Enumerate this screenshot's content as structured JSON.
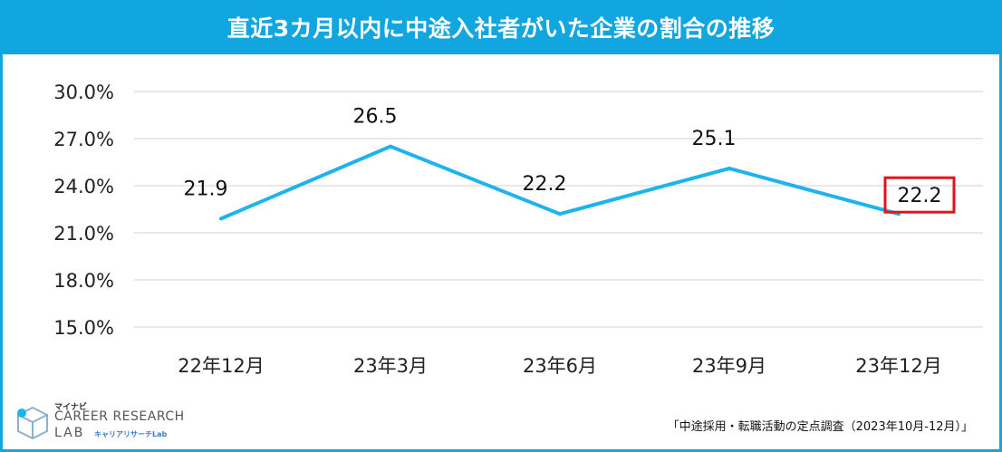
{
  "title": "直近3カ月以内に中途入社者がいた企業の割合の推移",
  "source": "「中途採用・転職活動の定点調査（2023年10月-12月）」",
  "logo": {
    "brand": "マイナビ",
    "line1": "CAREER RESEARCH",
    "line2": "LAB",
    "line3": "キャリアリサーチLab"
  },
  "colors": {
    "line": "#1db4ee",
    "title_bg": "#11a6e0",
    "highlight_box": "#e0141e",
    "grid": "#d0d0d0"
  },
  "chart_data": {
    "type": "line",
    "title": "直近3カ月以内に中途入社者がいた企業の割合の推移",
    "categories": [
      "22年12月",
      "23年3月",
      "23年6月",
      "23年9月",
      "23年12月"
    ],
    "series": [
      {
        "values": [
          21.9,
          26.5,
          22.2,
          25.1,
          22.2
        ]
      }
    ],
    "data_labels": [
      "21.9",
      "26.5",
      "22.2",
      "25.1",
      "22.2"
    ],
    "highlighted_index": 4,
    "ylim": [
      15,
      30
    ],
    "yticks": [
      "15.0%",
      "18.0%",
      "21.0%",
      "24.0%",
      "27.0%",
      "30.0%"
    ],
    "grid": true,
    "legend": "none"
  }
}
